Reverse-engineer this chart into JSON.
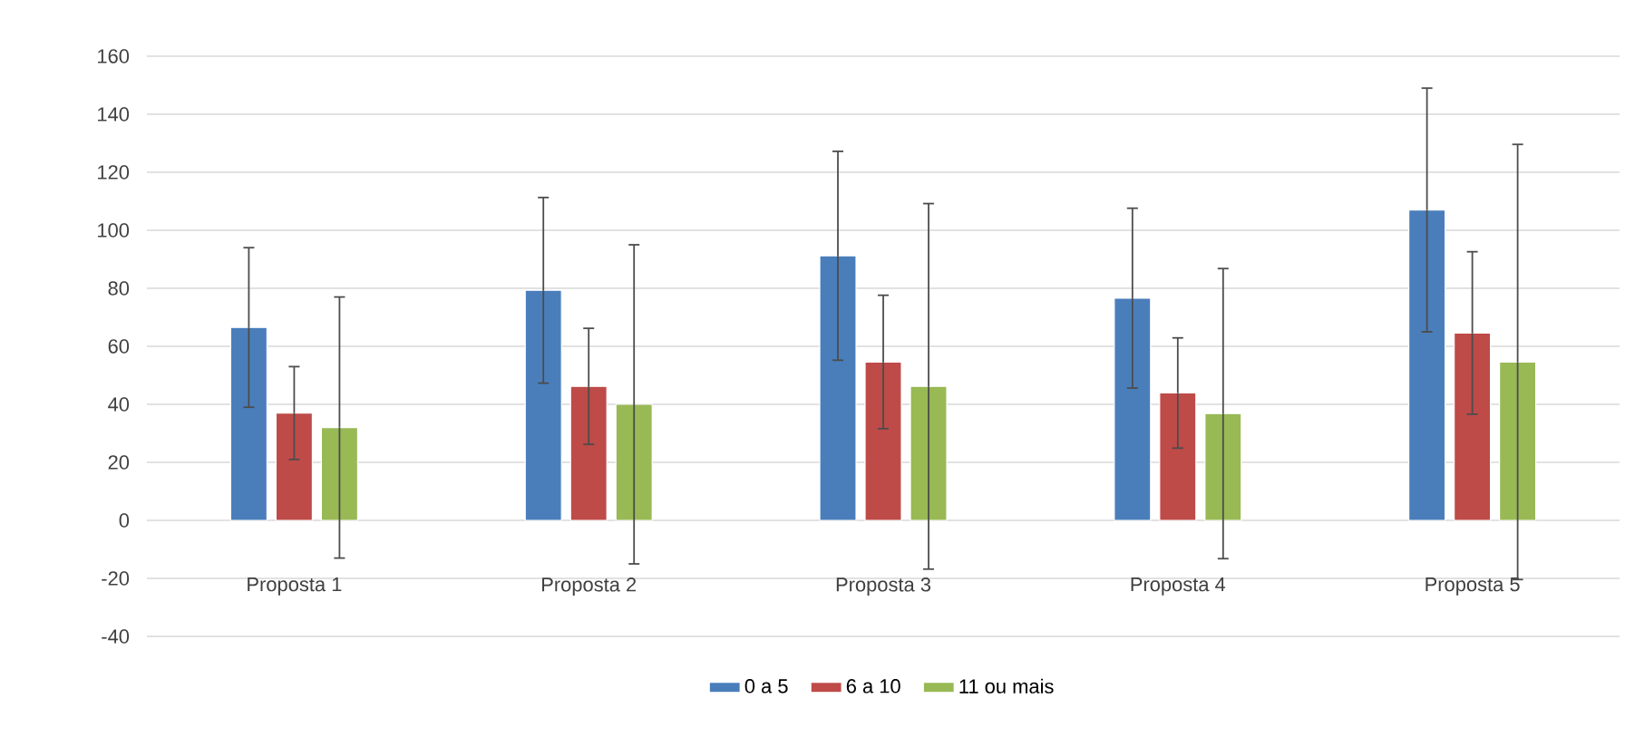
{
  "chart_data": {
    "type": "bar",
    "categories": [
      "Proposta 1",
      "Proposta 2",
      "Proposta 3",
      "Proposta 4",
      "Proposta 5"
    ],
    "series": [
      {
        "name": "0 a 5",
        "color": "#4a7ebb",
        "values": [
          66.5,
          79.3,
          91.2,
          76.6,
          107
        ],
        "errors": [
          27.5,
          32,
          36,
          31,
          42
        ]
      },
      {
        "name": "6 a 10",
        "color": "#be4b48",
        "values": [
          37,
          46.2,
          54.6,
          43.9,
          64.6
        ],
        "errors": [
          16,
          20,
          23,
          19,
          28
        ]
      },
      {
        "name": "11 ou mais",
        "color": "#98b954",
        "values": [
          32,
          40,
          46.2,
          36.8,
          54.6
        ],
        "errors": [
          45,
          55,
          63,
          50,
          75
        ]
      }
    ],
    "ylim": [
      -40,
      160
    ],
    "yticks": [
      -40,
      -20,
      0,
      20,
      40,
      60,
      80,
      100,
      120,
      140,
      160
    ],
    "grid": "y",
    "legend": "bottom"
  }
}
